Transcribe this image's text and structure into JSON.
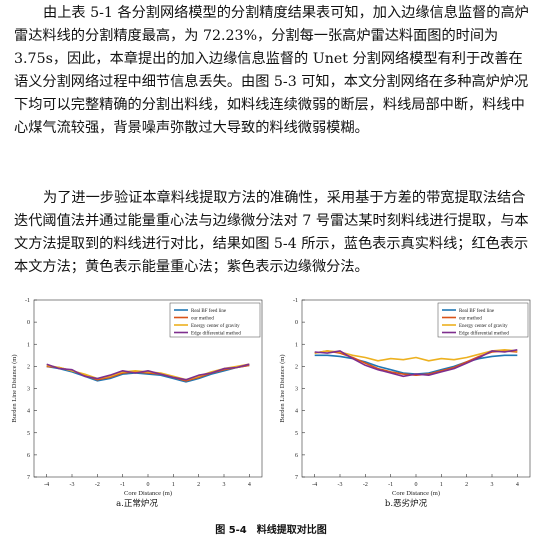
{
  "paragraphs": {
    "p1": "由上表 5-1 各分割网络模型的分割精度结果表可知，加入边缘信息监督的高炉雷达料线的分割精度最高，为 72.23%，分割每一张高炉雷达料面图的时间为 3.75s，因此，本章提出的加入边缘信息监督的 Unet 分割网络模型有利于改善在语义分割网络过程中细节信息丢失。由图 5-3 可知，本文分割网络在多种高炉炉况下均可以完整精确的分割出料线，如料线连续微弱的断层，料线局部中断，料线中心煤气流较强，背景噪声弥散过大导致的料线微弱模糊。",
    "p2": "为了进一步验证本章料线提取方法的准确性，采用基于方差的带宽提取法结合迭代阈值法并通过能量重心法与边缘微分法对 7 号雷达某时刻料线进行提取，与本文方法提取到的料线进行对比，结果如图 5-4 所示，蓝色表示真实料线；红色表示本文方法；黄色表示能量重心法；紫色表示边缘微分法。"
  },
  "figure": {
    "caption": "图 5-4　料线提取对比图",
    "subcaptions": [
      "a.正常炉况",
      "b.恶劣炉况"
    ]
  },
  "series_colors": {
    "Real BF feed line": "#1f77b4",
    "our method": "#d95319",
    "Energy center of gravity": "#edb120",
    "Edge differential method": "#7e2f8e"
  },
  "chart_data": [
    {
      "type": "line",
      "xlabel": "Core Distance (m)",
      "ylabel": "Burden Line Distance (m)",
      "xlim": [
        -4.5,
        4.5
      ],
      "ylim": [
        -1,
        7
      ],
      "y_inverted": true,
      "xticks": [
        -4,
        -3,
        -2,
        -1,
        0,
        1,
        2,
        3,
        4
      ],
      "yticks": [
        -1,
        0,
        1,
        2,
        3,
        4,
        5,
        6,
        7
      ],
      "legend_position": "top-right",
      "x": [
        -4,
        -3.5,
        -3,
        -2.5,
        -2,
        -1.5,
        -1,
        -0.5,
        0,
        0.5,
        1,
        1.5,
        2,
        2.5,
        3,
        3.5,
        4
      ],
      "series": [
        {
          "name": "Real BF feed line",
          "values": [
            2.0,
            2.1,
            2.25,
            2.45,
            2.65,
            2.55,
            2.35,
            2.3,
            2.35,
            2.4,
            2.55,
            2.7,
            2.55,
            2.35,
            2.2,
            2.05,
            1.95
          ]
        },
        {
          "name": "our method",
          "values": [
            2.0,
            2.05,
            2.2,
            2.4,
            2.6,
            2.5,
            2.3,
            2.25,
            2.3,
            2.35,
            2.5,
            2.65,
            2.5,
            2.3,
            2.15,
            2.05,
            1.95
          ]
        },
        {
          "name": "Energy center of gravity",
          "values": [
            1.95,
            2.05,
            2.2,
            2.35,
            2.55,
            2.45,
            2.25,
            2.2,
            2.25,
            2.3,
            2.45,
            2.6,
            2.45,
            2.25,
            2.1,
            2.0,
            1.9
          ]
        },
        {
          "name": "Edge differential method",
          "values": [
            1.9,
            2.1,
            2.15,
            2.45,
            2.55,
            2.4,
            2.2,
            2.3,
            2.2,
            2.35,
            2.5,
            2.6,
            2.4,
            2.3,
            2.1,
            2.05,
            1.9
          ]
        }
      ]
    },
    {
      "type": "line",
      "xlabel": "Core Distance (m)",
      "ylabel": "Burden Line Distance (m)",
      "xlim": [
        -4.5,
        4.5
      ],
      "ylim": [
        -1,
        7
      ],
      "y_inverted": true,
      "xticks": [
        -4,
        -3,
        -2,
        -1,
        0,
        1,
        2,
        3,
        4
      ],
      "yticks": [
        -1,
        0,
        1,
        2,
        3,
        4,
        5,
        6,
        7
      ],
      "legend_position": "top-right",
      "x": [
        -4,
        -3.5,
        -3,
        -2.5,
        -2,
        -1.5,
        -1,
        -0.5,
        0,
        0.5,
        1,
        1.5,
        2,
        2.5,
        3,
        3.5,
        4
      ],
      "series": [
        {
          "name": "Real BF feed line",
          "values": [
            1.5,
            1.5,
            1.55,
            1.65,
            1.8,
            2.0,
            2.15,
            2.3,
            2.35,
            2.3,
            2.15,
            2.0,
            1.8,
            1.65,
            1.55,
            1.5,
            1.5
          ]
        },
        {
          "name": "our method",
          "values": [
            1.4,
            1.3,
            1.4,
            1.6,
            1.85,
            2.1,
            2.25,
            2.35,
            2.4,
            2.35,
            2.2,
            2.05,
            1.8,
            1.55,
            1.35,
            1.3,
            1.35
          ]
        },
        {
          "name": "Energy center of gravity",
          "values": [
            1.4,
            1.3,
            1.35,
            1.5,
            1.6,
            1.75,
            1.65,
            1.7,
            1.6,
            1.75,
            1.65,
            1.7,
            1.6,
            1.45,
            1.3,
            1.25,
            1.3
          ]
        },
        {
          "name": "Edge differential method",
          "values": [
            1.35,
            1.4,
            1.3,
            1.65,
            1.95,
            2.15,
            2.3,
            2.45,
            2.35,
            2.4,
            2.25,
            2.1,
            1.85,
            1.6,
            1.3,
            1.35,
            1.25
          ]
        }
      ]
    }
  ]
}
